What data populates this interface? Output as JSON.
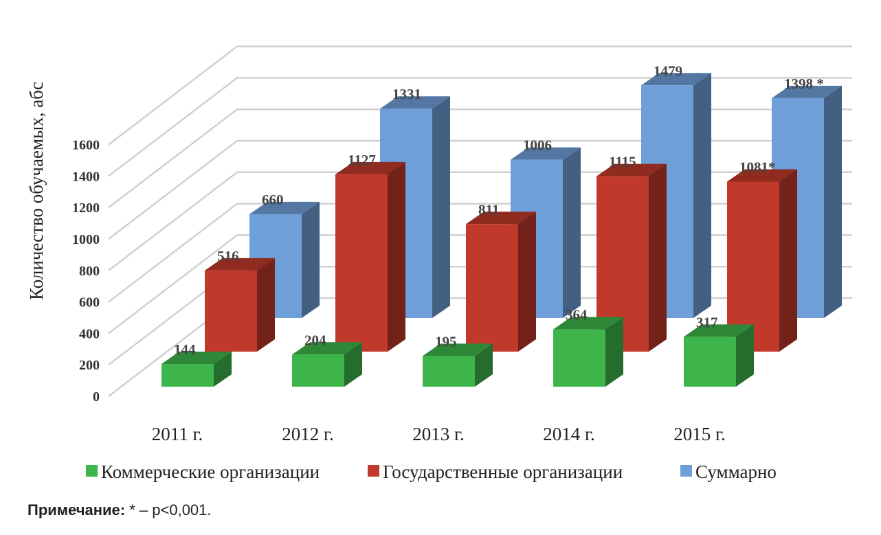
{
  "chart_data": {
    "type": "bar",
    "style": "3d-clustered-depth",
    "title": "",
    "ylabel": "Количество обучаемых, абс",
    "xlabel": "",
    "ylim": [
      0,
      1600
    ],
    "yticks": [
      "0",
      "200",
      "400",
      "600",
      "800",
      "1000",
      "1200",
      "1400",
      "1600"
    ],
    "categories": [
      "2011 г.",
      "2012 г.",
      "2013 г.",
      "2014 г.",
      "2015 г."
    ],
    "grid": true,
    "legend_position": "bottom",
    "series": [
      {
        "name": "Коммерческие организации",
        "color": "#3db54a",
        "values": [
          144,
          204,
          195,
          364,
          317
        ],
        "labels": [
          "144",
          "204",
          "195",
          "364",
          "317"
        ]
      },
      {
        "name": "Государственные организации",
        "color": "#c0392b",
        "values": [
          516,
          1127,
          811,
          1115,
          1081
        ],
        "labels": [
          "516",
          "1127",
          "811",
          "1115",
          "1081*"
        ]
      },
      {
        "name": "Суммарно",
        "color": "#6f9fd8",
        "values": [
          660,
          1331,
          1006,
          1479,
          1398
        ],
        "labels": [
          "660",
          "1331",
          "1006",
          "1479",
          "1398 *"
        ]
      }
    ]
  },
  "note": {
    "label": "Примечание:",
    "text": " * – p<0,001."
  }
}
